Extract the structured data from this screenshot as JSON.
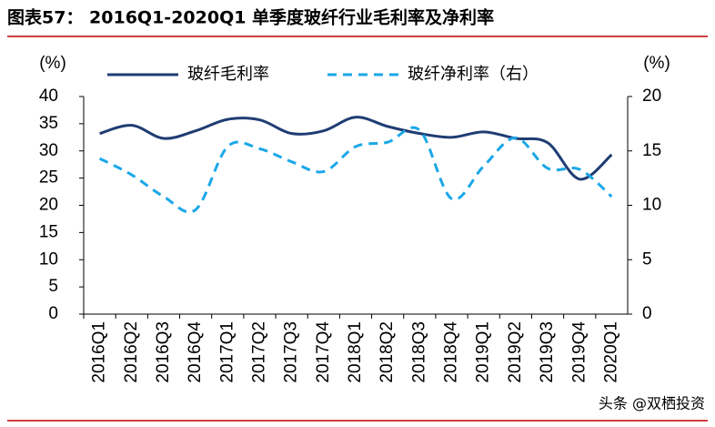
{
  "chart_data": {
    "type": "line",
    "title": "图表57：  2016Q1-2020Q1 单季度玻纤行业毛利率及净利率",
    "y_label": "(%)",
    "y2_label": "(%)",
    "categories": [
      "2016Q1",
      "2016Q2",
      "2016Q3",
      "2016Q4",
      "2017Q1",
      "2017Q2",
      "2017Q3",
      "2017Q4",
      "2018Q1",
      "2018Q2",
      "2018Q3",
      "2018Q4",
      "2019Q1",
      "2019Q2",
      "2019Q3",
      "2019Q4",
      "2020Q1"
    ],
    "series": [
      {
        "name": "玻纤毛利率",
        "color": "#1f3d73",
        "dash": false,
        "values": [
          33.2,
          34.7,
          32.3,
          33.7,
          35.8,
          35.7,
          33.2,
          33.7,
          36.2,
          34.5,
          33.2,
          32.5,
          33.5,
          32.3,
          31.5,
          24.8,
          29.3
        ]
      },
      {
        "name": "玻纤净利率（右）",
        "color": "#1aa7e8",
        "dash": true,
        "axis": "y2",
        "values": [
          14.3,
          12.8,
          10.8,
          9.6,
          15.4,
          15.2,
          14.0,
          13.1,
          15.4,
          15.8,
          16.9,
          10.6,
          13.6,
          16.2,
          13.4,
          13.3,
          10.8
        ]
      }
    ],
    "ylim": [
      0,
      40
    ],
    "yticks": [
      0,
      5,
      10,
      15,
      20,
      25,
      30,
      35,
      40
    ],
    "y2lim": [
      0,
      20
    ],
    "y2ticks": [
      0,
      5,
      10,
      15,
      20
    ],
    "source": "头条 @双栖投资"
  }
}
